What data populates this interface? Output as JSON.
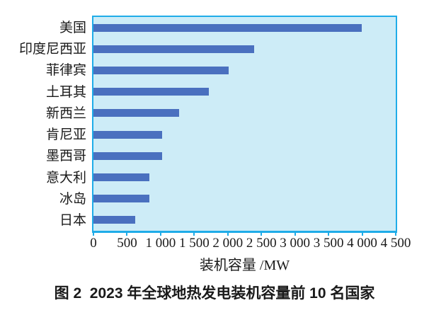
{
  "chart_data": {
    "type": "bar",
    "orientation": "horizontal",
    "caption": "图 2  2023 年全球地热发电装机容量前 10 名国家",
    "xlabel": "装机容量 /MW",
    "categories": [
      "美国",
      "印度尼西亚",
      "菲律宾",
      "土耳其",
      "新西兰",
      "肯尼亚",
      "墨西哥",
      "意大利",
      "冰岛",
      "日本"
    ],
    "values": [
      3990,
      2395,
      2010,
      1715,
      1280,
      1025,
      1020,
      830,
      830,
      625
    ],
    "unit": "MW",
    "xlim": [
      0,
      4500
    ],
    "xticks": [
      0,
      500,
      1000,
      1500,
      2000,
      2500,
      3000,
      3500,
      4000,
      4500
    ],
    "xtick_labels": [
      "0",
      "500",
      "1 000",
      "1 500",
      "2 000",
      "2 500",
      "3 000",
      "3 500",
      "4 000",
      "4 500"
    ],
    "grid": false,
    "legend": null,
    "colors": {
      "bar": "#4a70bf",
      "plot_background": "#cdecf7",
      "frame": "#1face8",
      "text": "#1a1a1a"
    }
  }
}
